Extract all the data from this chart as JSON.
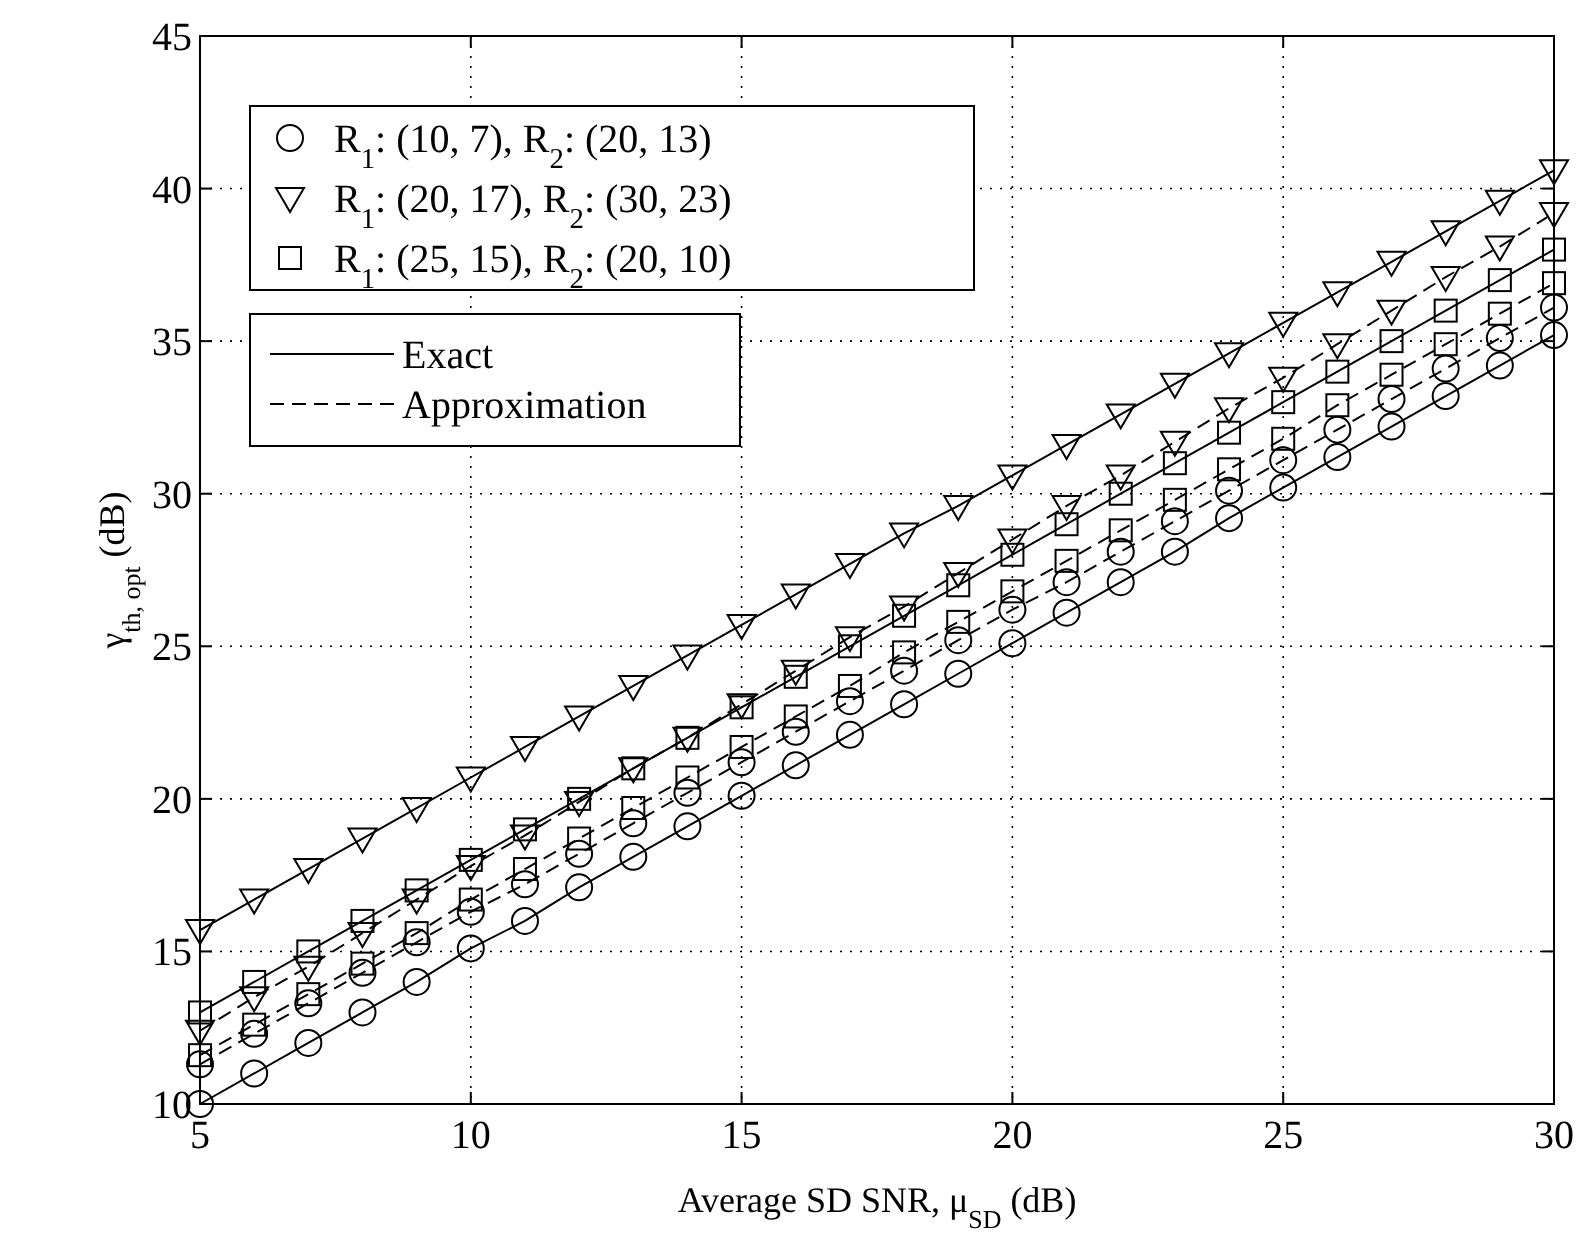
{
  "chart_data": {
    "type": "line",
    "xlabel": "Average SD SNR, μ$_{SD}$ (dB)",
    "ylabel": "γ$_{th, opt}$ (dB)",
    "x": [
      5,
      6,
      7,
      8,
      9,
      10,
      11,
      12,
      13,
      14,
      15,
      16,
      17,
      18,
      19,
      20,
      21,
      22,
      23,
      24,
      25,
      26,
      27,
      28,
      29,
      30
    ],
    "xlim": [
      5,
      30
    ],
    "xticks": [
      5,
      10,
      15,
      20,
      25,
      30
    ],
    "ylim": [
      10,
      45
    ],
    "yticks": [
      10,
      15,
      20,
      25,
      30,
      35,
      40,
      45
    ],
    "grid": true,
    "legend": "top left",
    "series": [
      {
        "name": "R$_{1}$: (10, 7), R$_{2}$: (20, 13)",
        "color": "#000000",
        "marker": "circle",
        "line_style": "solid",
        "values": [
          10,
          11,
          12,
          13,
          14,
          15.1,
          16,
          17.1,
          18.1,
          19.1,
          20.1,
          21.1,
          22.1,
          23.1,
          24.1,
          25.1,
          26.1,
          27.1,
          28.1,
          29.2,
          30.2,
          31.2,
          32.2,
          33.2,
          34.2,
          35.2
        ]
      },
      {
        "name": "R$_{1}$: (20, 17), R$_{2}$: (30, 23)",
        "color": "#000000",
        "marker": "triangle",
        "line_style": "solid",
        "values": [
          15.7,
          16.7,
          17.7,
          18.7,
          19.7,
          20.7,
          21.7,
          22.7,
          23.7,
          24.7,
          25.7,
          26.7,
          27.7,
          28.7,
          29.6,
          30.6,
          31.6,
          32.6,
          33.6,
          34.6,
          35.6,
          36.6,
          37.6,
          38.6,
          39.6,
          40.6
        ]
      },
      {
        "name": "R$_{1}$: (25, 15), R$_{2}$: (20, 10)",
        "color": "#000000",
        "marker": "square",
        "line_style": "solid",
        "values": [
          13,
          14,
          15,
          16,
          17,
          18,
          19,
          20,
          21,
          22,
          23,
          24,
          25,
          26,
          27,
          28,
          29,
          30,
          31,
          32,
          33,
          34,
          35,
          36,
          37,
          38
        ]
      },
      {
        "color": "#000000",
        "marker": "circle",
        "line_style": "dashed",
        "values": [
          11.3,
          12.3,
          13.3,
          14.3,
          15.3,
          16.3,
          17.2,
          18.2,
          19.2,
          20.2,
          21.2,
          22.2,
          23.2,
          24.2,
          25.2,
          26.2,
          27.1,
          28.1,
          29.1,
          30.1,
          31.1,
          32.1,
          33.1,
          34.1,
          35.1,
          36.1
        ]
      },
      {
        "color": "#000000",
        "marker": "triangle",
        "line_style": "dashed",
        "values": [
          12.4,
          13.5,
          14.5,
          15.6,
          16.7,
          17.8,
          18.8,
          19.9,
          21.0,
          22.0,
          23.1,
          24.2,
          25.3,
          26.3,
          27.4,
          28.5,
          29.6,
          30.6,
          31.7,
          32.8,
          33.8,
          34.9,
          36.0,
          37.1,
          38.1,
          39.2
        ]
      },
      {
        "color": "#000000",
        "marker": "square",
        "line_style": "dashed",
        "values": [
          11.6,
          12.6,
          13.6,
          14.6,
          15.6,
          16.7,
          17.7,
          18.7,
          19.7,
          20.7,
          21.7,
          22.7,
          23.7,
          24.8,
          25.8,
          26.8,
          27.8,
          28.8,
          29.8,
          30.8,
          31.8,
          32.9,
          33.9,
          34.9,
          35.9,
          36.9
        ]
      }
    ],
    "annotations": [
      "Exact",
      "Approximation"
    ]
  }
}
